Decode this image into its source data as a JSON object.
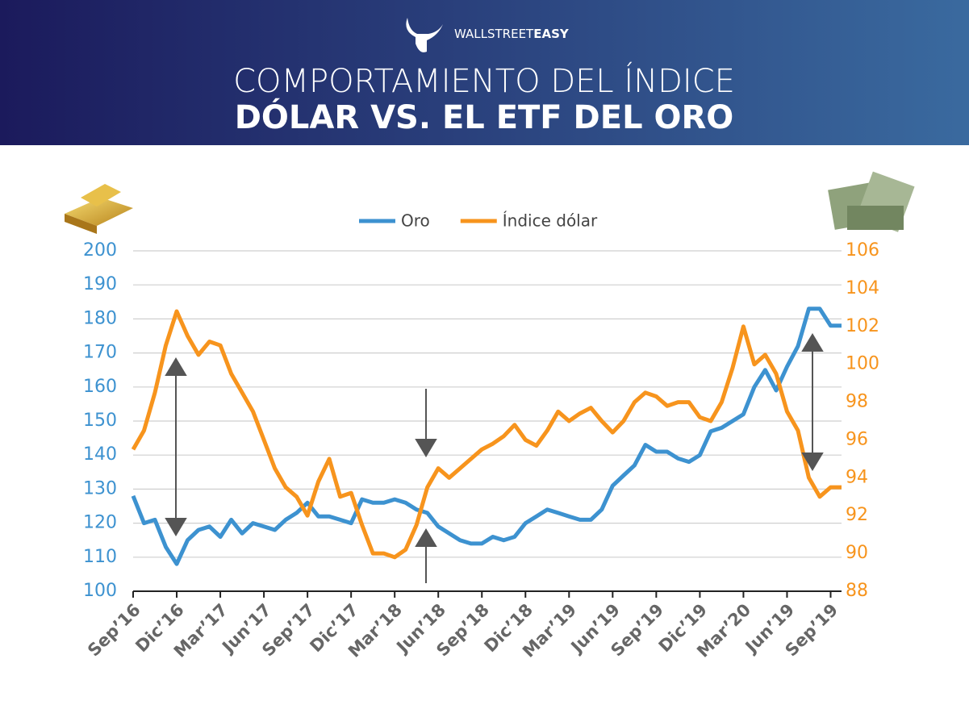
{
  "header": {
    "brand_light": "WALLSTREET",
    "brand_bold": "EASY",
    "title_line1": "COMPORTAMIENTO DEL ÍNDICE",
    "title_line2": "DÓLAR VS. EL ETF DEL ORO"
  },
  "chart_data": {
    "type": "line",
    "categories": [
      "Sep’16",
      null,
      null,
      null,
      "Dic’16",
      null,
      null,
      null,
      "Mar’17",
      null,
      null,
      null,
      "Jun’17",
      null,
      null,
      null,
      "Sep’17",
      null,
      null,
      null,
      "Dic’17",
      null,
      null,
      null,
      "Mar’18",
      null,
      null,
      null,
      "Jun’18",
      null,
      null,
      null,
      "Sep’18",
      null,
      null,
      null,
      "Dic’18",
      null,
      null,
      null,
      "Mar’19",
      null,
      null,
      null,
      "Jun’19",
      null,
      null,
      null,
      "Sep’19",
      null,
      null,
      null,
      "Dic’19",
      null,
      null,
      null,
      "Mar’20",
      null,
      null,
      null,
      "Jun’19",
      null,
      null,
      null,
      "Sep’19",
      null
    ],
    "series": [
      {
        "name": "Oro",
        "color": "#3d92d0",
        "values": [
          128,
          120,
          121,
          113,
          108,
          115,
          118,
          119,
          116,
          121,
          117,
          120,
          119,
          118,
          121,
          123,
          126,
          122,
          122,
          121,
          120,
          127,
          126,
          126,
          127,
          126,
          124,
          123,
          119,
          117,
          115,
          114,
          114,
          116,
          115,
          116,
          120,
          122,
          124,
          123,
          122,
          121,
          121,
          124,
          131,
          134,
          137,
          143,
          141,
          141,
          139,
          138,
          140,
          147,
          148,
          150,
          152,
          160,
          165,
          159,
          166,
          172,
          183,
          183,
          178,
          178
        ]
      },
      {
        "name": "Índice dólar",
        "color": "#f7941d",
        "axis": "y2",
        "values": [
          95.5,
          96.5,
          98.5,
          101,
          102.8,
          101.5,
          100.5,
          101.2,
          101,
          99.5,
          98.5,
          97.5,
          96,
          94.5,
          93.5,
          93,
          92,
          93.8,
          95,
          93,
          93.2,
          91.5,
          90,
          90,
          89.8,
          90.2,
          91.5,
          93.5,
          94.5,
          94,
          94.5,
          95,
          95.5,
          95.8,
          96.2,
          96.8,
          96,
          95.7,
          96.5,
          97.5,
          97,
          97.4,
          97.7,
          97,
          96.4,
          97,
          98,
          98.5,
          98.3,
          97.8,
          98,
          98,
          97.2,
          97,
          98,
          99.8,
          102,
          100,
          100.5,
          99.5,
          97.5,
          96.5,
          94,
          93,
          93.5,
          93.5
        ]
      }
    ],
    "ylim": [
      100,
      200
    ],
    "yticks": [
      100,
      110,
      120,
      130,
      140,
      150,
      160,
      170,
      180,
      190,
      200
    ],
    "y2lim": [
      88,
      106
    ],
    "y2ticks": [
      88,
      90,
      92,
      94,
      96,
      98,
      100,
      102,
      104,
      106
    ],
    "grid": true,
    "legend": "top"
  }
}
